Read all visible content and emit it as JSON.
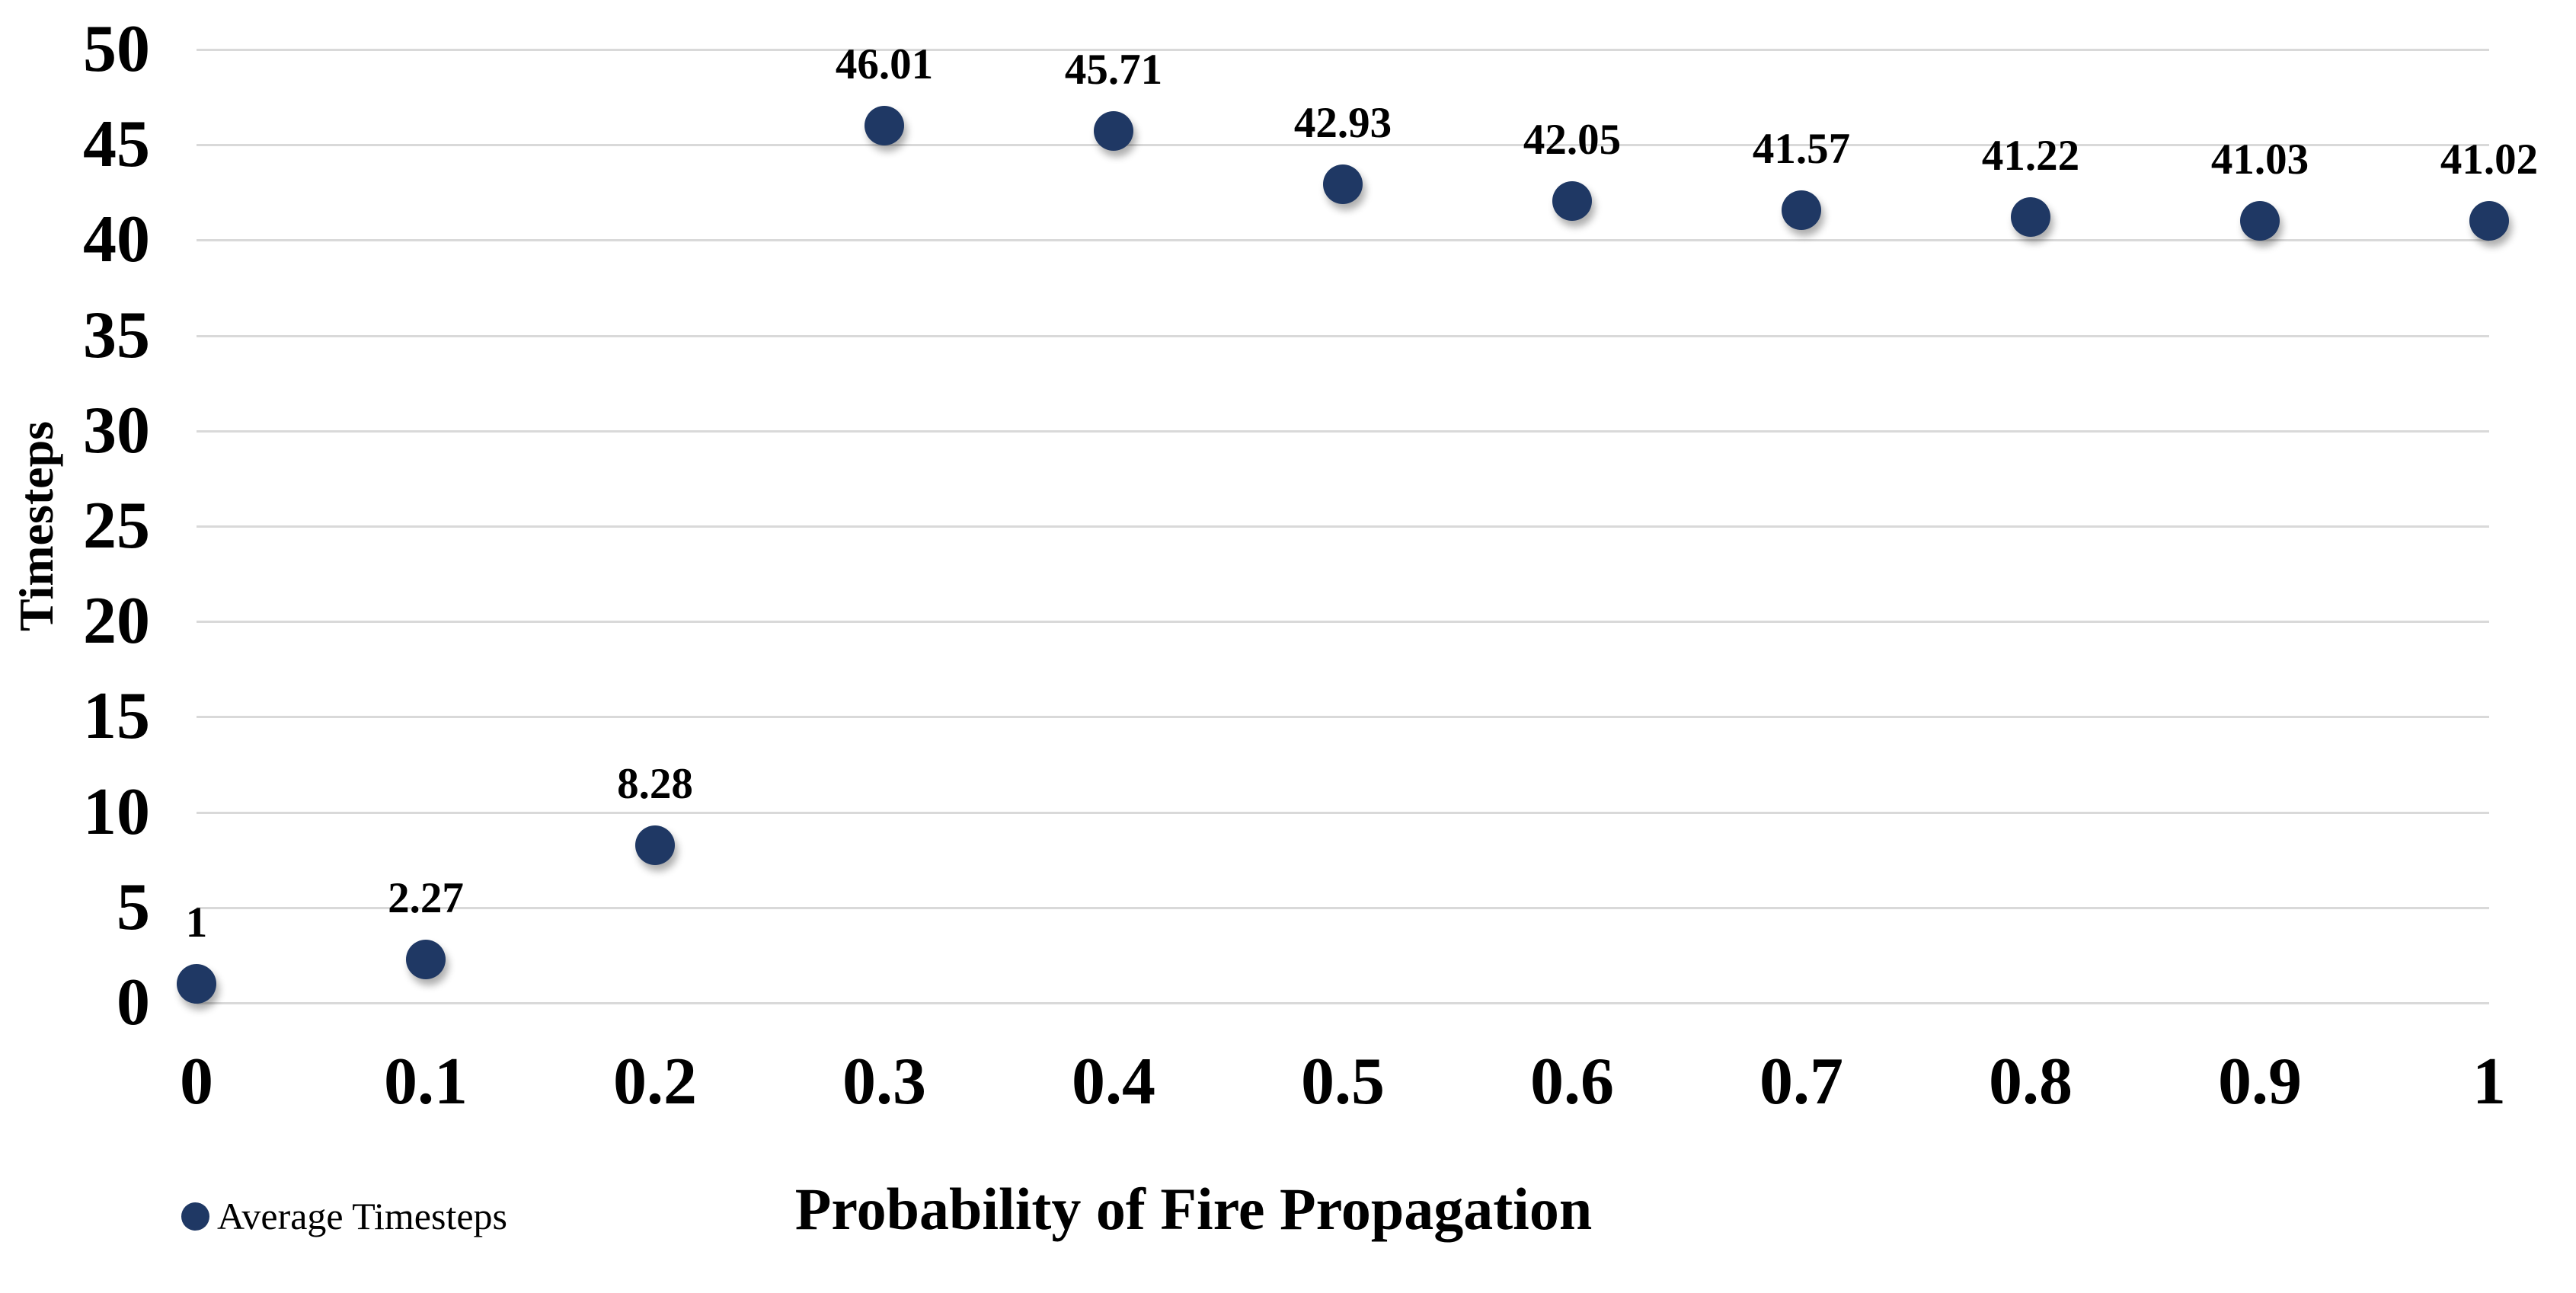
{
  "chart_data": {
    "type": "scatter",
    "title": "",
    "xlabel": "Probability of Fire Propagation",
    "ylabel": "Timesteps",
    "xlim": [
      0,
      1
    ],
    "ylim": [
      0,
      50
    ],
    "x_ticks": [
      "0",
      "0.1",
      "0.2",
      "0.3",
      "0.4",
      "0.5",
      "0.6",
      "0.7",
      "0.8",
      "0.9",
      "1"
    ],
    "x_tick_values": [
      0,
      0.1,
      0.2,
      0.3,
      0.4,
      0.5,
      0.6,
      0.7,
      0.8,
      0.9,
      1
    ],
    "y_ticks": [
      "0",
      "5",
      "10",
      "15",
      "20",
      "25",
      "30",
      "35",
      "40",
      "45",
      "50"
    ],
    "y_tick_values": [
      0,
      5,
      10,
      15,
      20,
      25,
      30,
      35,
      40,
      45,
      50
    ],
    "grid": "horizontal",
    "gridline_color": "#d9d9d9",
    "background_color": "#ffffff",
    "legend_position": "bottom-left",
    "series": [
      {
        "name": "Average Timesteps",
        "color": "#1f3864",
        "marker": "circle",
        "marker_size": 52,
        "x": [
          0,
          0.1,
          0.2,
          0.3,
          0.4,
          0.5,
          0.6,
          0.7,
          0.8,
          0.9,
          1
        ],
        "y": [
          1,
          2.27,
          8.28,
          46.01,
          45.71,
          42.93,
          42.05,
          41.57,
          41.22,
          41.03,
          41.02
        ],
        "point_labels": [
          "1",
          "2.27",
          "8.28",
          "46.01",
          "45.71",
          "42.93",
          "42.05",
          "41.57",
          "41.22",
          "41.03",
          "41.02"
        ]
      }
    ]
  },
  "legend": {
    "label": "Average Timesteps",
    "marker_color": "#1f3864"
  }
}
